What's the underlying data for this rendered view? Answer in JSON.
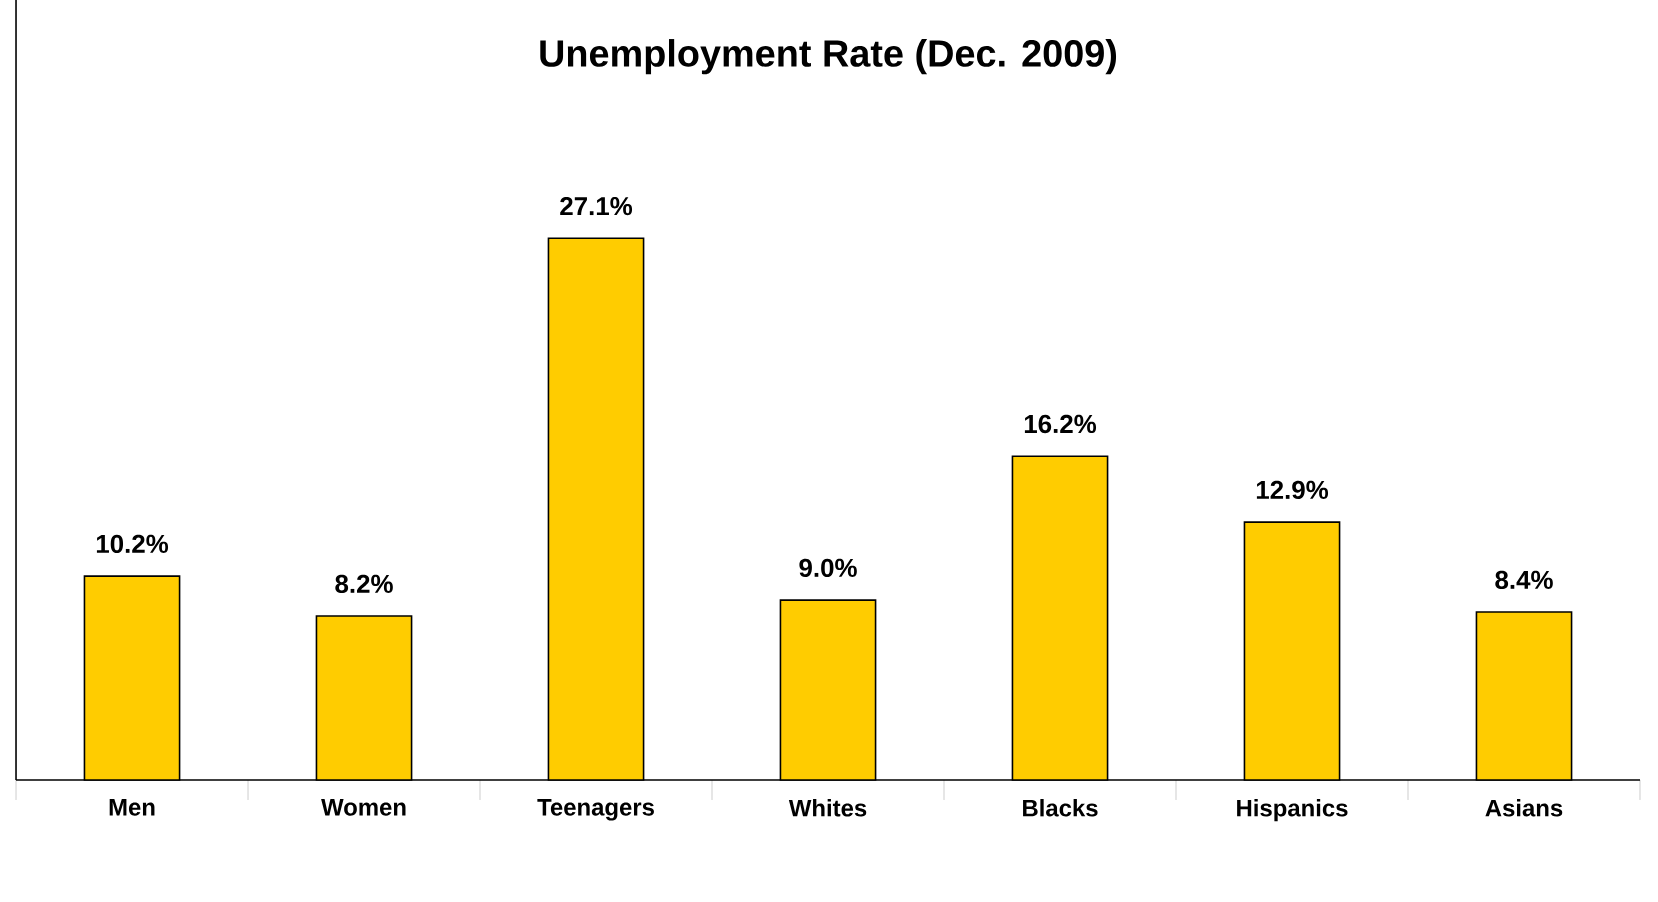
{
  "chart_data": {
    "type": "bar",
    "title": "Unemployment Rate (Dec. 2009)",
    "categories": [
      "Men",
      "Women",
      "Teenagers",
      "Whites",
      "Blacks",
      "Hispanics",
      "Asians"
    ],
    "values": [
      10.2,
      8.2,
      27.1,
      9.0,
      16.2,
      12.9,
      8.4
    ],
    "value_labels": [
      "10.2%",
      "8.2%",
      "27.1%",
      "9.0%",
      "16.2%",
      "12.9%",
      "8.4%"
    ],
    "color": "#ffcc00"
  }
}
